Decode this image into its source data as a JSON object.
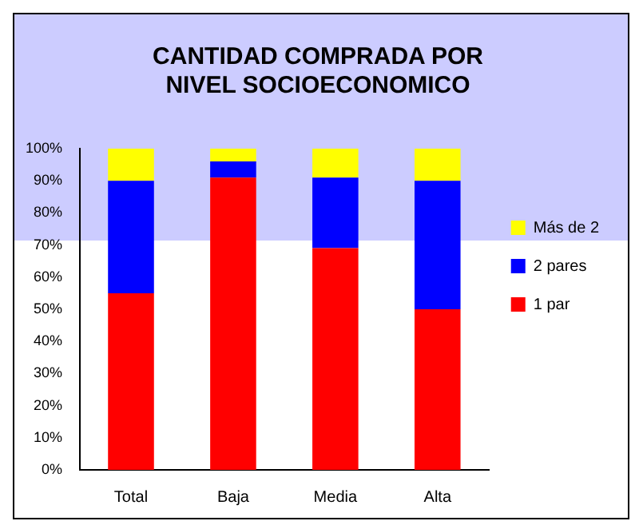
{
  "chart_data": {
    "type": "bar",
    "title": "CANTIDAD COMPRADA POR NIVEL SOCIOECONOMICO",
    "categories": [
      "Total",
      "Baja",
      "Media",
      "Alta"
    ],
    "stacked": true,
    "legend": "right",
    "grid": false,
    "series": [
      {
        "name": "1 par",
        "color": "#ff0000",
        "values": [
          55,
          91,
          69,
          50
        ]
      },
      {
        "name": "2 pares",
        "color": "#0000ff",
        "values": [
          35,
          5,
          22,
          40
        ]
      },
      {
        "name": "Más de 2",
        "color": "#ffff00",
        "values": [
          10,
          4,
          9,
          10
        ]
      }
    ],
    "ylim": [
      0,
      100
    ],
    "yticks": [
      {
        "value": 0,
        "label": "0%"
      },
      {
        "value": 10,
        "label": "10%"
      },
      {
        "value": 20,
        "label": "20%"
      },
      {
        "value": 30,
        "label": "30%"
      },
      {
        "value": 40,
        "label": "40%"
      },
      {
        "value": 50,
        "label": "50%"
      },
      {
        "value": 60,
        "label": "60%"
      },
      {
        "value": 70,
        "label": "70%"
      },
      {
        "value": 80,
        "label": "80%"
      },
      {
        "value": 90,
        "label": "90%"
      },
      {
        "value": 100,
        "label": "100%"
      }
    ]
  }
}
